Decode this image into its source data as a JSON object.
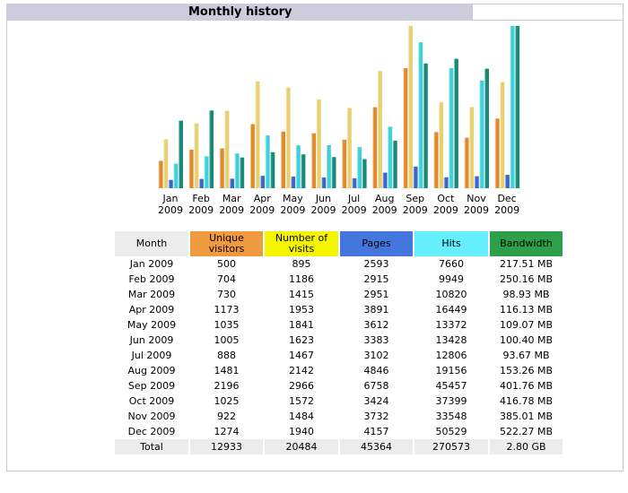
{
  "header": {
    "title": "Monthly history"
  },
  "colors": {
    "title_bar": "#ccccdd",
    "unique_visitors": "#f09a40",
    "visits": "#f4f400",
    "pages": "#4477dd",
    "hits": "#66f0ff",
    "bandwidth": "#2ea049",
    "month_header": "#ececec"
  },
  "table": {
    "headers": {
      "month": "Month",
      "unique_visitors": "Unique visitors",
      "visits": "Number of visits",
      "pages": "Pages",
      "hits": "Hits",
      "bandwidth": "Bandwidth"
    },
    "rows": [
      {
        "month": "Jan 2009",
        "unique_visitors": "500",
        "visits": "895",
        "pages": "2593",
        "hits": "7660",
        "bandwidth": "217.51 MB"
      },
      {
        "month": "Feb 2009",
        "unique_visitors": "704",
        "visits": "1186",
        "pages": "2915",
        "hits": "9949",
        "bandwidth": "250.16 MB"
      },
      {
        "month": "Mar 2009",
        "unique_visitors": "730",
        "visits": "1415",
        "pages": "2951",
        "hits": "10820",
        "bandwidth": "98.93 MB"
      },
      {
        "month": "Apr 2009",
        "unique_visitors": "1173",
        "visits": "1953",
        "pages": "3891",
        "hits": "16449",
        "bandwidth": "116.13 MB"
      },
      {
        "month": "May 2009",
        "unique_visitors": "1035",
        "visits": "1841",
        "pages": "3612",
        "hits": "13372",
        "bandwidth": "109.07 MB"
      },
      {
        "month": "Jun 2009",
        "unique_visitors": "1005",
        "visits": "1623",
        "pages": "3383",
        "hits": "13428",
        "bandwidth": "100.40 MB"
      },
      {
        "month": "Jul 2009",
        "unique_visitors": "888",
        "visits": "1467",
        "pages": "3102",
        "hits": "12806",
        "bandwidth": "93.67 MB"
      },
      {
        "month": "Aug 2009",
        "unique_visitors": "1481",
        "visits": "2142",
        "pages": "4846",
        "hits": "19156",
        "bandwidth": "153.26 MB"
      },
      {
        "month": "Sep 2009",
        "unique_visitors": "2196",
        "visits": "2966",
        "pages": "6758",
        "hits": "45457",
        "bandwidth": "401.76 MB"
      },
      {
        "month": "Oct 2009",
        "unique_visitors": "1025",
        "visits": "1572",
        "pages": "3424",
        "hits": "37399",
        "bandwidth": "416.78 MB"
      },
      {
        "month": "Nov 2009",
        "unique_visitors": "922",
        "visits": "1484",
        "pages": "3732",
        "hits": "33548",
        "bandwidth": "385.01 MB"
      },
      {
        "month": "Dec 2009",
        "unique_visitors": "1274",
        "visits": "1940",
        "pages": "4157",
        "hits": "50529",
        "bandwidth": "522.27 MB"
      }
    ],
    "total": {
      "month": "Total",
      "unique_visitors": "12933",
      "visits": "20484",
      "pages": "45364",
      "hits": "270573",
      "bandwidth": "2.80 GB"
    }
  },
  "chart_data": {
    "type": "bar",
    "title": "Monthly history",
    "categories": [
      "Jan",
      "Feb",
      "Mar",
      "Apr",
      "May",
      "Jun",
      "Jul",
      "Aug",
      "Sep",
      "Oct",
      "Nov",
      "Dec"
    ],
    "years": [
      "2009",
      "2009",
      "2009",
      "2009",
      "2009",
      "2009",
      "2009",
      "2009",
      "2009",
      "2009",
      "2009",
      "2009"
    ],
    "series": [
      {
        "name": "Unique visitors",
        "group": "visitors",
        "color": "#e08a30",
        "values": [
          500,
          704,
          730,
          1173,
          1035,
          1005,
          888,
          1481,
          2196,
          1025,
          922,
          1274
        ]
      },
      {
        "name": "Number of visits",
        "group": "visitors",
        "color": "#e8d070",
        "values": [
          895,
          1186,
          1415,
          1953,
          1841,
          1623,
          1467,
          2142,
          2966,
          1572,
          1484,
          1940
        ]
      },
      {
        "name": "Pages",
        "group": "traffic",
        "color": "#3d66cc",
        "values": [
          2593,
          2915,
          2951,
          3891,
          3612,
          3383,
          3102,
          4846,
          6758,
          3424,
          3732,
          4157
        ]
      },
      {
        "name": "Hits",
        "group": "traffic",
        "color": "#40d0dc",
        "values": [
          7660,
          9949,
          10820,
          16449,
          13372,
          13428,
          12806,
          19156,
          45457,
          37399,
          33548,
          50529
        ]
      },
      {
        "name": "Bandwidth (MB)",
        "group": "bandwidth",
        "color": "#1a8a78",
        "values": [
          217.51,
          250.16,
          98.93,
          116.13,
          109.07,
          100.4,
          93.67,
          153.26,
          401.76,
          416.78,
          385.01,
          522.27
        ]
      }
    ],
    "xlabel": "",
    "ylabel": "",
    "grid": false,
    "legend": "none"
  }
}
